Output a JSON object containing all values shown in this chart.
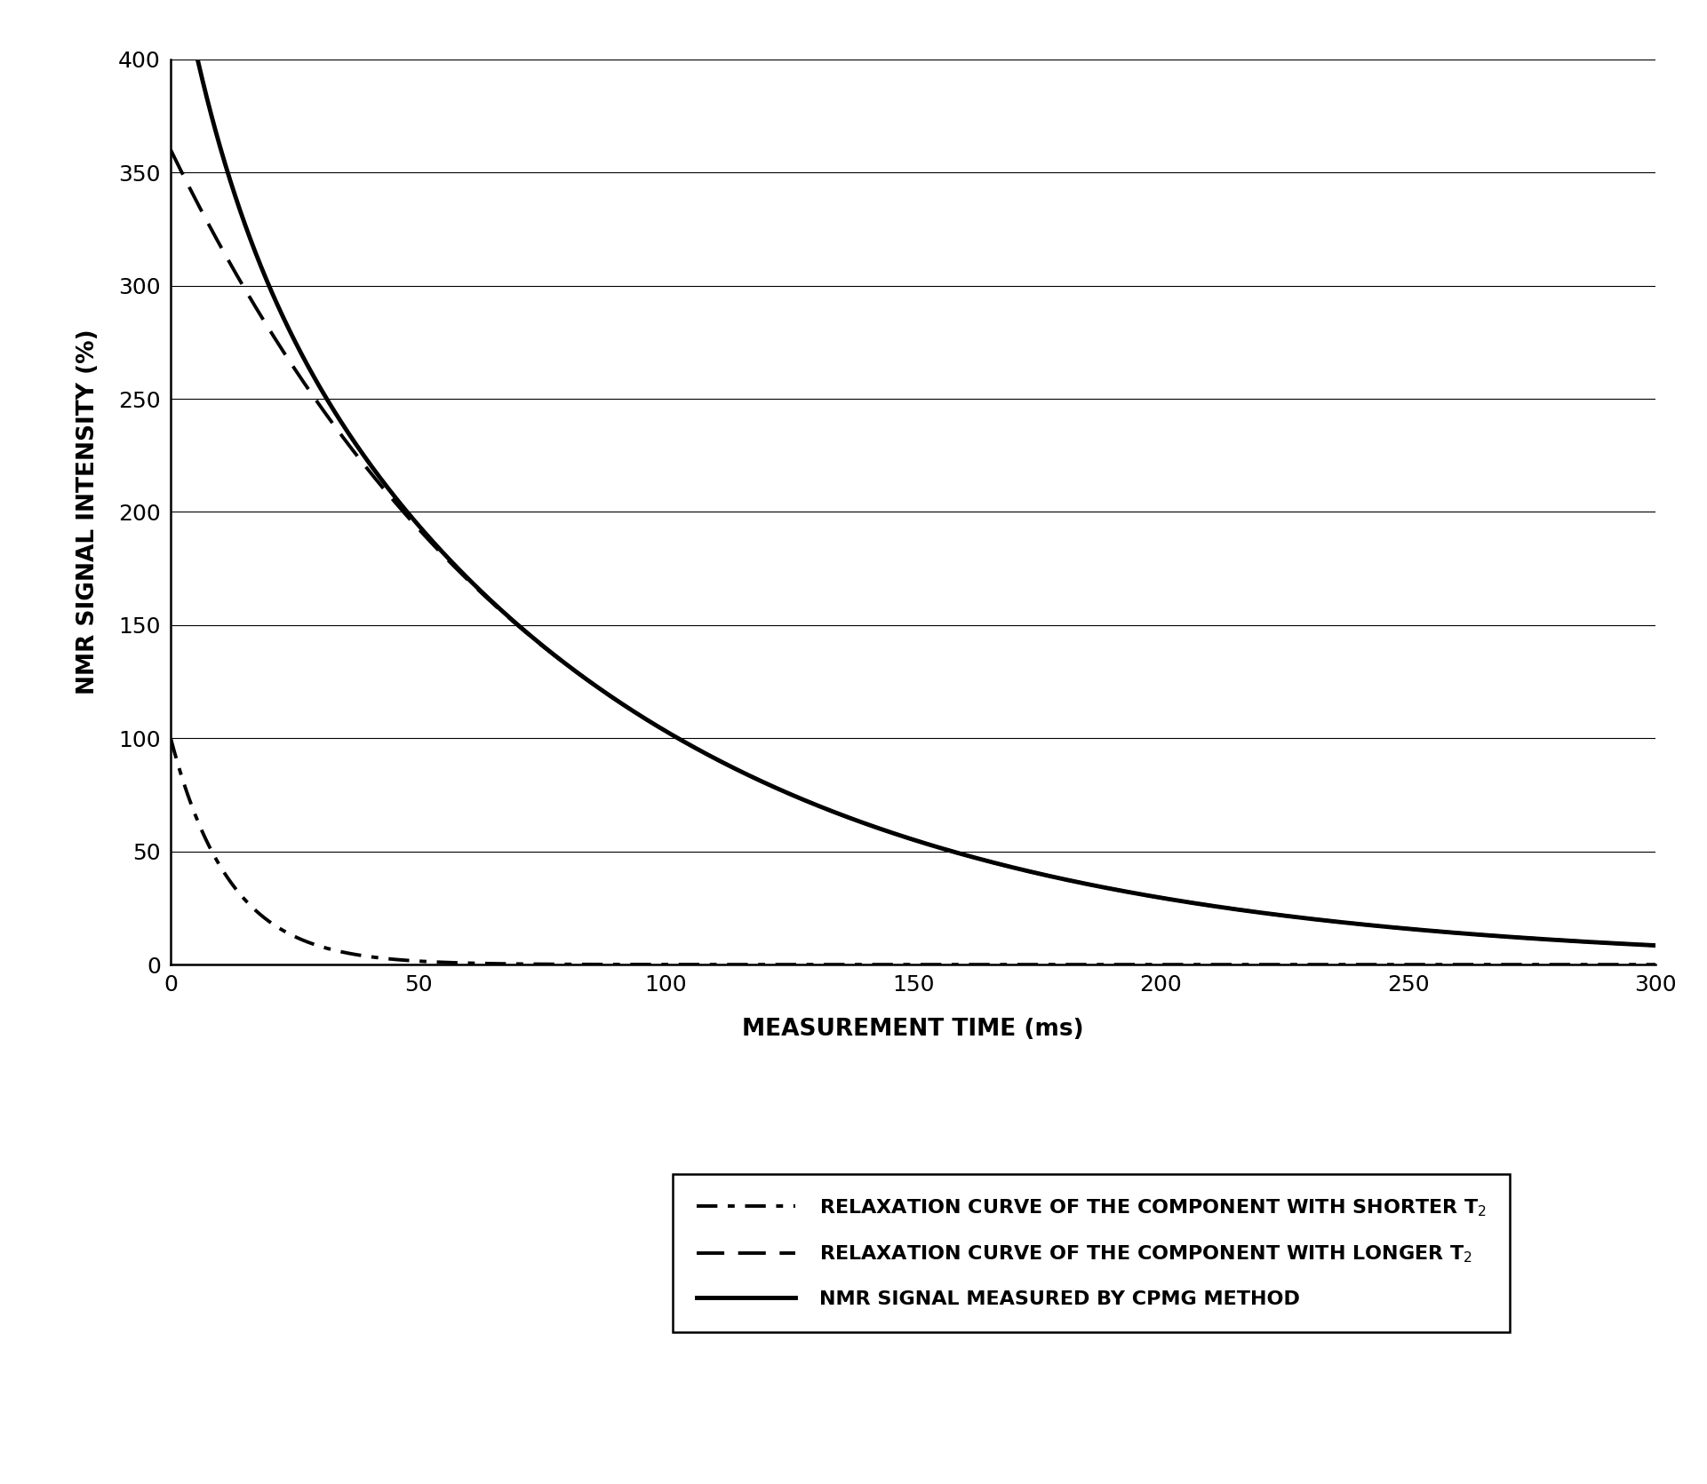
{
  "title": "",
  "xlabel": "MEASUREMENT TIME (ms)",
  "ylabel": "NMR SIGNAL INTENSITY (%)",
  "xlim": [
    0,
    300
  ],
  "ylim": [
    0,
    400
  ],
  "xticks": [
    0,
    50,
    100,
    150,
    200,
    250,
    300
  ],
  "yticks": [
    0,
    50,
    100,
    150,
    200,
    250,
    300,
    350,
    400
  ],
  "curve1": {
    "label": "RELAXATION CURVE OF THE COMPONENT WITH SHORTER T$_2$",
    "A": 100,
    "T2": 12,
    "linestyle": "dashdot",
    "linewidth": 2.8,
    "color": "#000000"
  },
  "curve2": {
    "label": "RELAXATION CURVE OF THE COMPONENT WITH LONGER T$_2$",
    "A": 360,
    "T2": 80,
    "linestyle": "dashed",
    "linewidth": 2.8,
    "color": "#000000"
  },
  "curve3": {
    "label": "NMR SIGNAL MEASURED BY CPMG METHOD",
    "linestyle": "solid",
    "linewidth": 3.5,
    "color": "#000000"
  },
  "background_color": "#ffffff",
  "grid_color": "#000000",
  "legend_fontsize": 16,
  "axis_label_fontsize": 19,
  "tick_fontsize": 18,
  "figsize": [
    19.21,
    16.71
  ],
  "dpi": 100
}
